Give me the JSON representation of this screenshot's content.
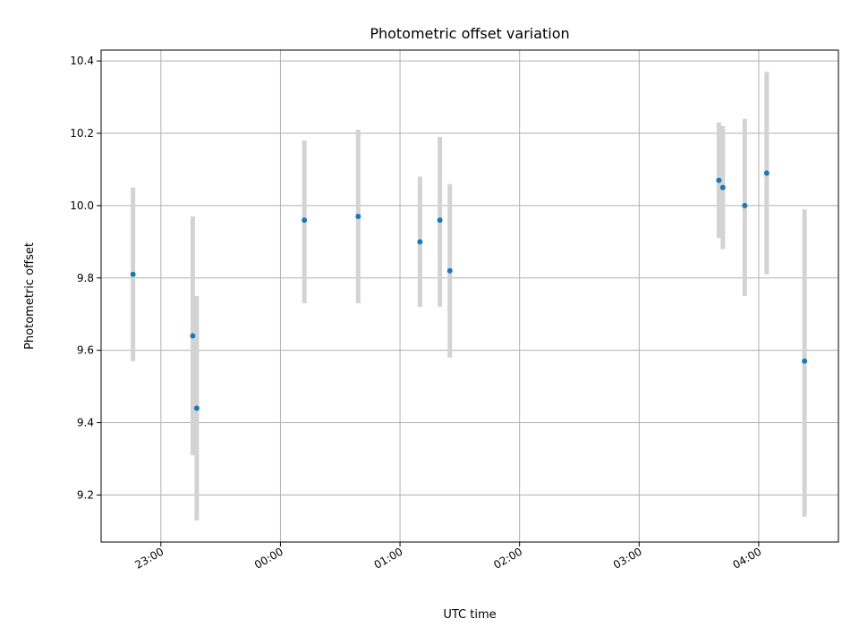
{
  "chart_data": {
    "type": "scatter",
    "title": "Photometric offset variation",
    "xlabel": "UTC time",
    "ylabel": "Photometric offset",
    "ylim": [
      9.07,
      10.43
    ],
    "xlim": [
      "22:30",
      "04:40"
    ],
    "grid": true,
    "x_tick_labels": [
      "23:00",
      "00:00",
      "01:00",
      "02:00",
      "03:00",
      "04:00"
    ],
    "y_tick_labels": [
      "9.2",
      "9.4",
      "9.6",
      "9.8",
      "10.0",
      "10.2",
      "10.4"
    ],
    "points": [
      {
        "x": "22:46",
        "y": 9.81,
        "err_low": 9.57,
        "err_high": 10.05
      },
      {
        "x": "23:16",
        "y": 9.64,
        "err_low": 9.31,
        "err_high": 9.97
      },
      {
        "x": "23:18",
        "y": 9.44,
        "err_low": 9.13,
        "err_high": 9.75
      },
      {
        "x": "00:12",
        "y": 9.96,
        "err_low": 9.73,
        "err_high": 10.18
      },
      {
        "x": "00:39",
        "y": 9.97,
        "err_low": 9.73,
        "err_high": 10.21
      },
      {
        "x": "01:10",
        "y": 9.9,
        "err_low": 9.72,
        "err_high": 10.08
      },
      {
        "x": "01:20",
        "y": 9.96,
        "err_low": 9.72,
        "err_high": 10.19
      },
      {
        "x": "01:25",
        "y": 9.82,
        "err_low": 9.58,
        "err_high": 10.06
      },
      {
        "x": "03:40",
        "y": 10.07,
        "err_low": 9.91,
        "err_high": 10.23
      },
      {
        "x": "03:42",
        "y": 10.05,
        "err_low": 9.88,
        "err_high": 10.22
      },
      {
        "x": "03:53",
        "y": 10.0,
        "err_low": 9.75,
        "err_high": 10.24
      },
      {
        "x": "04:04",
        "y": 10.09,
        "err_low": 9.81,
        "err_high": 10.37
      },
      {
        "x": "04:23",
        "y": 9.57,
        "err_low": 9.14,
        "err_high": 9.99
      }
    ],
    "colors": {
      "marker": "#1f77b4",
      "errorbar": "#d3d3d3",
      "grid": "#b0b0b0"
    }
  }
}
